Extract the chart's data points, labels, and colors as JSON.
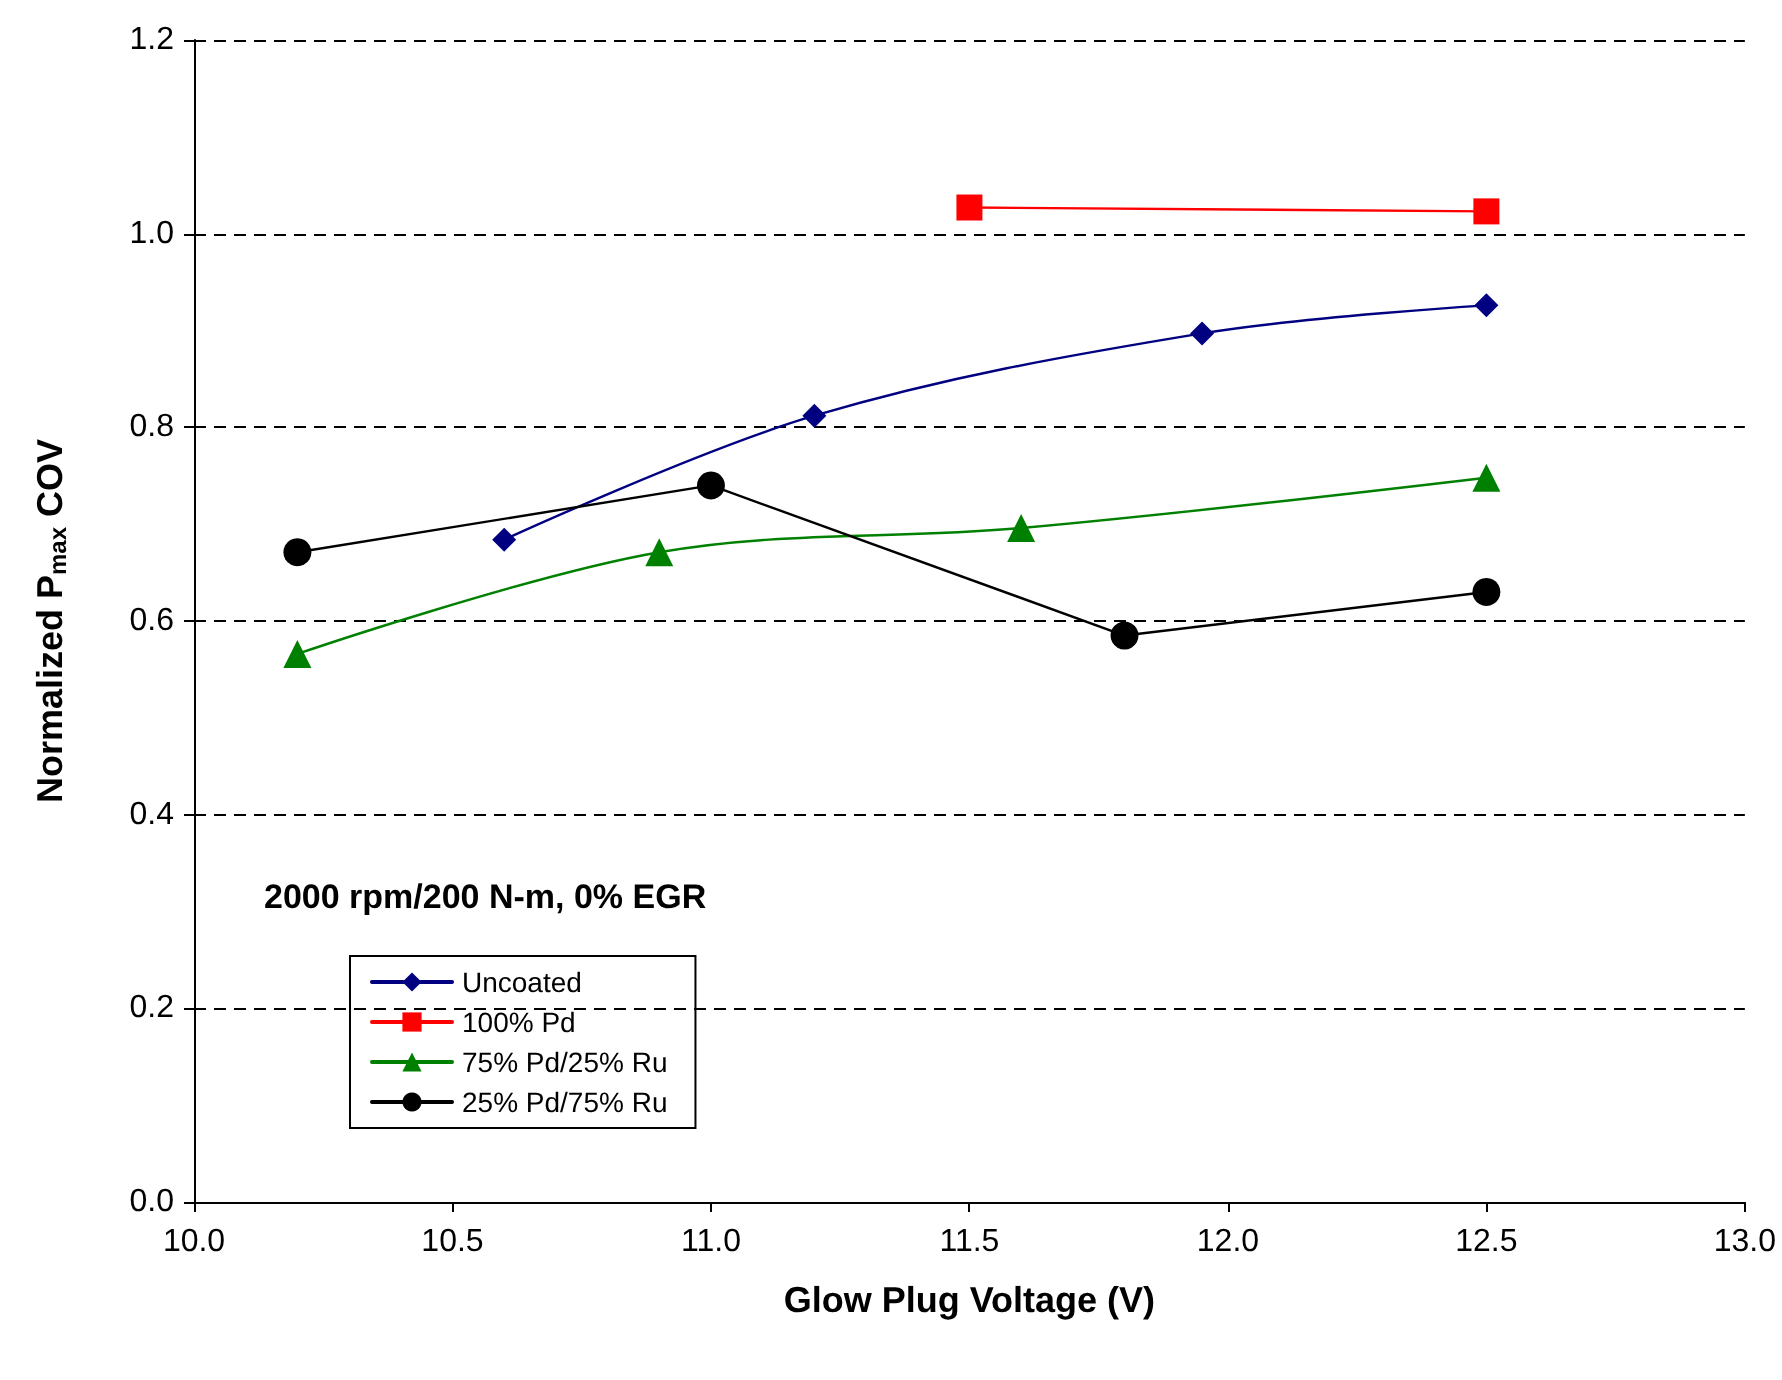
{
  "chart_data": {
    "type": "line",
    "xlabel": "Glow Plug Voltage (V)",
    "ylabel": "Normalized P$_{max}$ COV",
    "annotations": [
      "2000 rpm/200 N-m, 0% EGR"
    ],
    "xlim": [
      10,
      13
    ],
    "xticks": [
      {
        "value": 10,
        "label": "10.0"
      },
      {
        "value": 10.5,
        "label": "10.5"
      },
      {
        "value": 11,
        "label": "11.0"
      },
      {
        "value": 11.5,
        "label": "11.5"
      },
      {
        "value": 12,
        "label": "12.0"
      },
      {
        "value": 12.5,
        "label": "12.5"
      },
      {
        "value": 13,
        "label": "13.0"
      }
    ],
    "ylim": [
      0,
      1.2
    ],
    "yticks": [
      {
        "value": 0,
        "label": "0.0"
      },
      {
        "value": 0.2,
        "label": "0.2"
      },
      {
        "value": 0.4,
        "label": "0.4"
      },
      {
        "value": 0.6,
        "label": "0.6"
      },
      {
        "value": 0.8,
        "label": "0.8"
      },
      {
        "value": 1,
        "label": "1.0"
      },
      {
        "value": 1.2,
        "label": "1.2"
      }
    ],
    "grid": "y",
    "legend": "bottom left",
    "series": [
      {
        "name": "Uncoated",
        "color": "#000080",
        "marker": "diamond",
        "x": [
          10.6,
          11.2,
          11.95,
          12.5
        ],
        "values": [
          0.684,
          0.812,
          0.897,
          0.926
        ]
      },
      {
        "name": "100% Pd",
        "color": "#ff0000",
        "marker": "square",
        "x": [
          11.5,
          12.5
        ],
        "values": [
          1.027,
          1.023
        ]
      },
      {
        "name": "75% Pd/25% Ru",
        "color": "#008000",
        "marker": "triangle",
        "x": [
          10.2,
          10.9,
          11.6,
          12.5
        ],
        "values": [
          0.566,
          0.671,
          0.696,
          0.748
        ]
      },
      {
        "name": "25% Pd/75% Ru",
        "color": "#000000",
        "marker": "circle",
        "x": [
          10.2,
          11.0,
          11.8,
          12.5
        ],
        "values": [
          0.671,
          0.74,
          0.585,
          0.63
        ]
      }
    ]
  }
}
